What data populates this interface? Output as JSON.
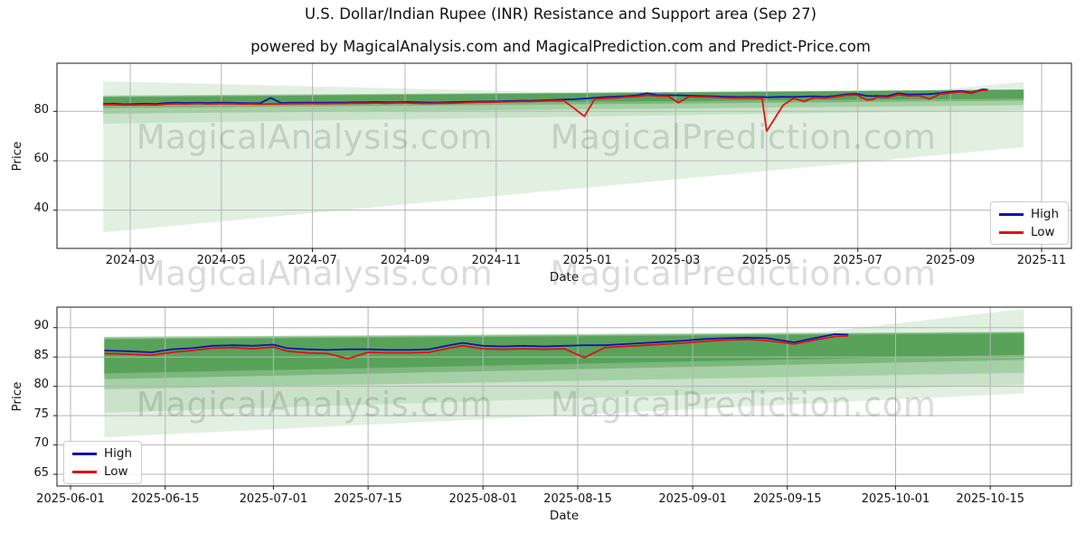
{
  "title": "U.S. Dollar/Indian Rupee (INR) Resistance and Support area (Sep 27)",
  "subtitle": "powered by MagicalAnalysis.com and MagicalPrediction.com and Predict-Price.com",
  "watermark_texts": [
    "MagicalAnalysis.com",
    "MagicalPrediction.com"
  ],
  "colors": {
    "high": "#1212b0",
    "low": "#e01212",
    "grid": "#b5b5b5",
    "axis": "#1a1a1a",
    "background": "#ffffff",
    "bands": {
      "core": "#58a25a",
      "a": "#7db77d",
      "b": "#a5d0a5",
      "c": "#c9e2c9",
      "light": "#e2f0e2"
    }
  },
  "chart_data": [
    {
      "type": "line",
      "xlabel": "Date",
      "ylabel": "Price",
      "grid": true,
      "legend_position": "upper right",
      "xlim": [
        "2024-01-12",
        "2025-11-21"
      ],
      "ylim": [
        24.5,
        99.5
      ],
      "xticks": [
        {
          "date": "2024-03-01",
          "label": "2024-03"
        },
        {
          "date": "2024-05-01",
          "label": "2024-05"
        },
        {
          "date": "2024-07-01",
          "label": "2024-07"
        },
        {
          "date": "2024-09-01",
          "label": "2024-09"
        },
        {
          "date": "2024-11-01",
          "label": "2024-11"
        },
        {
          "date": "2025-01-01",
          "label": "2025-01"
        },
        {
          "date": "2025-03-01",
          "label": "2025-03"
        },
        {
          "date": "2025-05-01",
          "label": "2025-05"
        },
        {
          "date": "2025-07-01",
          "label": "2025-07"
        },
        {
          "date": "2025-09-01",
          "label": "2025-09"
        },
        {
          "date": "2025-11-01",
          "label": "2025-11"
        }
      ],
      "yticks": [
        {
          "value": 40,
          "label": "40"
        },
        {
          "value": 60,
          "label": "60"
        },
        {
          "value": 80,
          "label": "80"
        }
      ],
      "dates": [
        "2024-02-12",
        "2024-02-19",
        "2024-02-26",
        "2024-03-04",
        "2024-03-11",
        "2024-03-18",
        "2024-03-25",
        "2024-04-01",
        "2024-04-08",
        "2024-04-15",
        "2024-04-22",
        "2024-04-29",
        "2024-05-06",
        "2024-05-13",
        "2024-05-20",
        "2024-05-27",
        "2024-06-03",
        "2024-06-10",
        "2024-06-17",
        "2024-06-24",
        "2024-07-01",
        "2024-07-08",
        "2024-07-15",
        "2024-07-22",
        "2024-07-29",
        "2024-08-05",
        "2024-08-12",
        "2024-08-19",
        "2024-08-26",
        "2024-09-02",
        "2024-09-09",
        "2024-09-16",
        "2024-09-23",
        "2024-09-30",
        "2024-10-07",
        "2024-10-14",
        "2024-10-21",
        "2024-10-28",
        "2024-11-04",
        "2024-11-11",
        "2024-11-18",
        "2024-11-25",
        "2024-12-02",
        "2024-12-09",
        "2024-12-16",
        "2024-12-23",
        "2024-12-30",
        "2025-01-06",
        "2025-01-13",
        "2025-01-20",
        "2025-01-27",
        "2025-02-03",
        "2025-02-10",
        "2025-02-17",
        "2025-02-24",
        "2025-03-03",
        "2025-03-10",
        "2025-03-17",
        "2025-03-24",
        "2025-03-31",
        "2025-04-07",
        "2025-04-14",
        "2025-04-21",
        "2025-04-28",
        "2025-05-01",
        "2025-05-12",
        "2025-05-19",
        "2025-05-26",
        "2025-06-02",
        "2025-06-09",
        "2025-06-16",
        "2025-06-23",
        "2025-06-30",
        "2025-07-07",
        "2025-07-11",
        "2025-07-14",
        "2025-07-21",
        "2025-07-28",
        "2025-08-04",
        "2025-08-11",
        "2025-08-18",
        "2025-08-25",
        "2025-09-01",
        "2025-09-08",
        "2025-09-15",
        "2025-09-19",
        "2025-09-22",
        "2025-09-26"
      ],
      "series": [
        {
          "name": "High",
          "color_key": "high",
          "values": [
            83.0,
            83.1,
            82.9,
            83.0,
            83.1,
            83.0,
            83.4,
            83.5,
            83.4,
            83.5,
            83.4,
            83.5,
            83.5,
            83.4,
            83.3,
            83.3,
            85.5,
            83.4,
            83.5,
            83.5,
            83.6,
            83.5,
            83.6,
            83.6,
            83.7,
            83.7,
            83.8,
            83.7,
            83.7,
            83.8,
            83.7,
            83.6,
            83.6,
            83.7,
            83.8,
            83.9,
            84.0,
            84.0,
            84.1,
            84.2,
            84.3,
            84.3,
            84.5,
            84.6,
            84.8,
            84.9,
            85.2,
            85.5,
            85.8,
            86.0,
            86.2,
            86.5,
            87.3,
            86.6,
            86.5,
            86.5,
            86.4,
            86.3,
            86.2,
            86.0,
            85.9,
            85.8,
            85.9,
            85.8,
            85.7,
            85.9,
            85.8,
            86.0,
            86.1,
            85.9,
            86.3,
            86.9,
            87.1,
            86.3,
            86.2,
            86.3,
            86.2,
            87.3,
            86.8,
            86.9,
            87.0,
            87.4,
            87.9,
            88.3,
            87.6,
            88.3,
            88.9,
            88.8
          ]
        },
        {
          "name": "Low",
          "color_key": "low",
          "values": [
            82.7,
            82.7,
            82.6,
            82.6,
            82.7,
            82.6,
            82.9,
            83.1,
            83.0,
            83.2,
            83.0,
            83.1,
            83.1,
            83.0,
            83.0,
            82.9,
            83.0,
            83.0,
            83.1,
            83.1,
            83.2,
            83.1,
            83.2,
            83.2,
            83.3,
            83.3,
            83.4,
            83.3,
            83.4,
            83.4,
            83.3,
            83.2,
            83.3,
            83.3,
            83.4,
            83.6,
            83.7,
            83.7,
            83.8,
            83.9,
            84.0,
            84.0,
            84.2,
            84.3,
            84.4,
            81.3,
            78.0,
            85.0,
            85.3,
            85.5,
            85.8,
            86.0,
            86.5,
            86.2,
            86.1,
            83.5,
            86.0,
            85.9,
            85.8,
            85.6,
            85.4,
            85.4,
            85.5,
            85.3,
            72.0,
            82.5,
            85.3,
            84.0,
            85.6,
            85.4,
            85.9,
            86.5,
            86.7,
            84.6,
            84.8,
            85.8,
            85.7,
            86.8,
            86.3,
            86.4,
            85.0,
            87.0,
            87.5,
            87.9,
            87.3,
            88.0,
            88.5,
            88.6
          ]
        }
      ],
      "bands": [
        {
          "color": "light",
          "upper": [
            [
              "2024-02-12",
              86.3
            ],
            [
              "2025-10-20",
              88.5
            ]
          ],
          "lower": [
            [
              "2024-02-12",
              31.0
            ],
            [
              "2025-10-20",
              65.5
            ]
          ]
        },
        {
          "color": "light",
          "upper": [
            [
              "2024-02-12",
              92.2
            ],
            [
              "2025-02-15",
              86.8
            ]
          ],
          "lower": [
            [
              "2024-02-12",
              86.3
            ],
            [
              "2025-02-15",
              86.8
            ]
          ]
        },
        {
          "color": "light",
          "upper": [
            [
              "2025-08-01",
              87.2
            ],
            [
              "2025-10-20",
              92.0
            ]
          ],
          "lower": [
            [
              "2025-08-01",
              87.2
            ],
            [
              "2025-10-20",
              88.2
            ]
          ]
        },
        {
          "color": "c",
          "upper": [
            [
              "2024-02-12",
              86.4
            ],
            [
              "2025-10-20",
              88.6
            ]
          ],
          "lower": [
            [
              "2024-02-12",
              75.0
            ],
            [
              "2025-10-20",
              80.5
            ]
          ]
        },
        {
          "color": "b",
          "upper": [
            [
              "2024-02-12",
              86.4
            ],
            [
              "2025-10-20",
              88.7
            ]
          ],
          "lower": [
            [
              "2024-02-12",
              79.0
            ],
            [
              "2025-10-20",
              82.5
            ]
          ]
        },
        {
          "color": "a",
          "upper": [
            [
              "2024-02-12",
              86.0
            ],
            [
              "2025-10-20",
              88.9
            ]
          ],
          "lower": [
            [
              "2024-02-12",
              81.3
            ],
            [
              "2025-10-20",
              84.3
            ]
          ]
        },
        {
          "color": "core",
          "upper": [
            [
              "2024-02-12",
              85.7
            ],
            [
              "2025-10-20",
              88.7
            ]
          ],
          "lower": [
            [
              "2024-02-12",
              82.5
            ],
            [
              "2025-10-20",
              85.2
            ]
          ]
        }
      ]
    },
    {
      "type": "line",
      "xlabel": "Date",
      "ylabel": "Price",
      "grid": true,
      "legend_position": "lower left",
      "xlim": [
        "2025-05-30",
        "2025-10-27"
      ],
      "ylim": [
        63.0,
        93.5
      ],
      "xticks": [
        {
          "date": "2025-06-01",
          "label": "2025-06-01"
        },
        {
          "date": "2025-06-15",
          "label": "2025-06-15"
        },
        {
          "date": "2025-07-01",
          "label": "2025-07-01"
        },
        {
          "date": "2025-07-15",
          "label": "2025-07-15"
        },
        {
          "date": "2025-08-01",
          "label": "2025-08-01"
        },
        {
          "date": "2025-08-15",
          "label": "2025-08-15"
        },
        {
          "date": "2025-09-01",
          "label": "2025-09-01"
        },
        {
          "date": "2025-09-15",
          "label": "2025-09-15"
        },
        {
          "date": "2025-10-01",
          "label": "2025-10-01"
        },
        {
          "date": "2025-10-15",
          "label": "2025-10-15"
        }
      ],
      "yticks": [
        {
          "value": 65,
          "label": "65"
        },
        {
          "value": 70,
          "label": "70"
        },
        {
          "value": 75,
          "label": "75"
        },
        {
          "value": 80,
          "label": "80"
        },
        {
          "value": 85,
          "label": "85"
        },
        {
          "value": 90,
          "label": "90"
        }
      ],
      "dates": [
        "2025-06-06",
        "2025-06-09",
        "2025-06-11",
        "2025-06-13",
        "2025-06-16",
        "2025-06-19",
        "2025-06-22",
        "2025-06-25",
        "2025-06-28",
        "2025-07-01",
        "2025-07-03",
        "2025-07-06",
        "2025-07-09",
        "2025-07-12",
        "2025-07-15",
        "2025-07-18",
        "2025-07-21",
        "2025-07-24",
        "2025-07-27",
        "2025-07-29",
        "2025-08-01",
        "2025-08-04",
        "2025-08-07",
        "2025-08-10",
        "2025-08-13",
        "2025-08-16",
        "2025-08-19",
        "2025-08-22",
        "2025-08-25",
        "2025-08-28",
        "2025-08-31",
        "2025-09-03",
        "2025-09-06",
        "2025-09-09",
        "2025-09-12",
        "2025-09-16",
        "2025-09-19",
        "2025-09-22",
        "2025-09-24"
      ],
      "series": [
        {
          "name": "High",
          "color_key": "high",
          "values": [
            86.1,
            86.0,
            85.9,
            85.8,
            86.3,
            86.5,
            86.9,
            87.0,
            86.9,
            87.1,
            86.5,
            86.3,
            86.2,
            86.3,
            86.3,
            86.2,
            86.2,
            86.3,
            87.0,
            87.4,
            86.9,
            86.8,
            86.9,
            86.8,
            86.9,
            87.0,
            87.0,
            87.2,
            87.4,
            87.6,
            87.8,
            88.1,
            88.2,
            88.3,
            88.2,
            87.5,
            88.2,
            88.9,
            88.8
          ]
        },
        {
          "name": "Low",
          "color_key": "low",
          "values": [
            85.6,
            85.5,
            85.4,
            85.3,
            85.8,
            86.1,
            86.5,
            86.6,
            86.4,
            86.7,
            86.0,
            85.7,
            85.6,
            84.7,
            85.8,
            85.7,
            85.7,
            85.8,
            86.5,
            86.9,
            86.4,
            86.3,
            86.4,
            86.3,
            86.4,
            84.9,
            86.6,
            86.8,
            87.0,
            87.2,
            87.4,
            87.7,
            87.9,
            88.0,
            87.8,
            87.2,
            87.9,
            88.5,
            88.6
          ]
        }
      ],
      "bands": [
        {
          "color": "light",
          "upper": [
            [
              "2025-06-06",
              88.5
            ],
            [
              "2025-10-20",
              89.4
            ]
          ],
          "lower": [
            [
              "2025-06-06",
              71.3
            ],
            [
              "2025-10-20",
              78.8
            ]
          ]
        },
        {
          "color": "light",
          "upper": [
            [
              "2025-09-18",
              89.0
            ],
            [
              "2025-10-20",
              93.2
            ]
          ],
          "lower": [
            [
              "2025-09-18",
              89.0
            ],
            [
              "2025-10-20",
              89.4
            ]
          ]
        },
        {
          "color": "c",
          "upper": [
            [
              "2025-06-06",
              88.4
            ],
            [
              "2025-10-20",
              89.3
            ]
          ],
          "lower": [
            [
              "2025-06-06",
              75.5
            ],
            [
              "2025-10-20",
              80.3
            ]
          ]
        },
        {
          "color": "b",
          "upper": [
            [
              "2025-06-06",
              88.4
            ],
            [
              "2025-10-20",
              89.3
            ]
          ],
          "lower": [
            [
              "2025-06-06",
              79.5
            ],
            [
              "2025-10-20",
              82.3
            ]
          ]
        },
        {
          "color": "a",
          "upper": [
            [
              "2025-06-06",
              88.2
            ],
            [
              "2025-10-20",
              89.2
            ]
          ],
          "lower": [
            [
              "2025-06-06",
              81.2
            ],
            [
              "2025-10-20",
              84.5
            ]
          ]
        },
        {
          "color": "core",
          "upper": [
            [
              "2025-06-06",
              88.0
            ],
            [
              "2025-10-20",
              89.0
            ]
          ],
          "lower": [
            [
              "2025-06-06",
              82.2
            ],
            [
              "2025-10-20",
              85.4
            ]
          ]
        }
      ]
    }
  ]
}
